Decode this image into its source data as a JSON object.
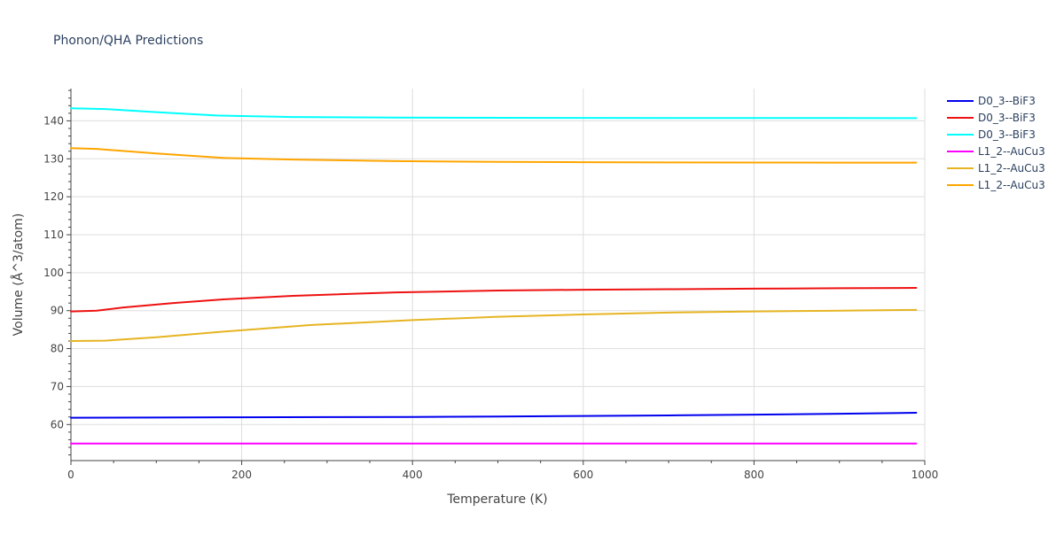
{
  "chart_data": {
    "type": "line",
    "title": "Phonon/QHA Predictions",
    "xlabel": "Temperature (K)",
    "ylabel": "Volume (Å^3/atom)",
    "xlim": [
      0,
      1000
    ],
    "ylim": [
      50.5,
      148.5
    ],
    "xticks": [
      0,
      200,
      400,
      600,
      800,
      1000
    ],
    "yticks": [
      60,
      70,
      80,
      90,
      100,
      110,
      120,
      130,
      140
    ],
    "grid": true,
    "legend_position": "right",
    "series": [
      {
        "name": "D0_3--BiF3",
        "color": "#0000ee",
        "x": [
          0,
          100,
          200,
          300,
          400,
          500,
          600,
          700,
          800,
          900,
          990
        ],
        "y": [
          61.8,
          61.85,
          61.9,
          61.95,
          62.0,
          62.1,
          62.25,
          62.4,
          62.6,
          62.85,
          63.1
        ]
      },
      {
        "name": "D0_3--BiF3",
        "color": "#ee1111",
        "x": [
          0,
          30,
          60,
          120,
          180,
          260,
          380,
          500,
          600,
          700,
          800,
          900,
          990
        ],
        "y": [
          89.8,
          90.0,
          90.8,
          92.0,
          93.0,
          93.9,
          94.8,
          95.3,
          95.5,
          95.65,
          95.8,
          95.9,
          96.0
        ]
      },
      {
        "name": "D0_3--BiF3",
        "color": "#00ffff",
        "x": [
          0,
          40,
          100,
          170,
          260,
          380,
          500,
          600,
          700,
          800,
          900,
          990
        ],
        "y": [
          143.3,
          143.1,
          142.3,
          141.4,
          141.0,
          140.85,
          140.8,
          140.78,
          140.76,
          140.74,
          140.72,
          140.7
        ]
      },
      {
        "name": "L1_2--AuCu3",
        "color": "#ff00ff",
        "x": [
          0,
          200,
          400,
          600,
          800,
          990
        ],
        "y": [
          55.0,
          55.0,
          55.0,
          55.0,
          55.0,
          55.0
        ]
      },
      {
        "name": "L1_2--AuCu3",
        "color": "#e6b422",
        "x": [
          0,
          40,
          100,
          180,
          280,
          400,
          500,
          600,
          700,
          800,
          900,
          990
        ],
        "y": [
          82.0,
          82.1,
          83.0,
          84.5,
          86.2,
          87.5,
          88.4,
          89.0,
          89.5,
          89.8,
          90.0,
          90.2
        ]
      },
      {
        "name": "L1_2--AuCu3",
        "color": "#ffa500",
        "x": [
          0,
          30,
          100,
          180,
          260,
          380,
          500,
          600,
          700,
          800,
          900,
          990
        ],
        "y": [
          132.8,
          132.6,
          131.4,
          130.2,
          129.8,
          129.4,
          129.2,
          129.1,
          129.05,
          129.02,
          129.0,
          129.0
        ]
      }
    ]
  }
}
